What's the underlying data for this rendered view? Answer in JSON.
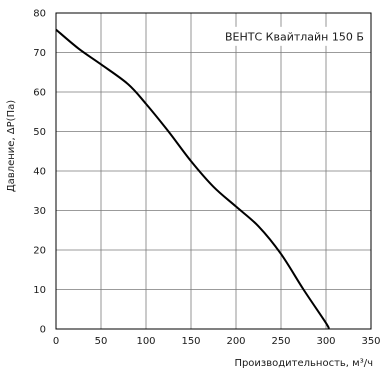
{
  "chart_data": {
    "type": "line",
    "xlabel": "Производительность, м³/ч",
    "ylabel": "Давление, ΔP(Па)",
    "xlim": [
      0,
      350
    ],
    "ylim": [
      0,
      80
    ],
    "x_ticks": [
      0,
      50,
      100,
      150,
      200,
      250,
      300,
      350
    ],
    "y_ticks": [
      0,
      10,
      20,
      30,
      40,
      50,
      60,
      70,
      80
    ],
    "grid": true,
    "legend_position": "top-right",
    "series": [
      {
        "name": "ВЕНТС Квайтлайн 150 Б",
        "color": "#000000",
        "x": [
          0,
          25,
          50,
          80,
          100,
          125,
          150,
          175,
          200,
          225,
          250,
          275,
          300,
          303
        ],
        "y": [
          75.8,
          71,
          67,
          62,
          57,
          50,
          42.5,
          36,
          31,
          26,
          19,
          10,
          1.5,
          0
        ]
      }
    ]
  }
}
